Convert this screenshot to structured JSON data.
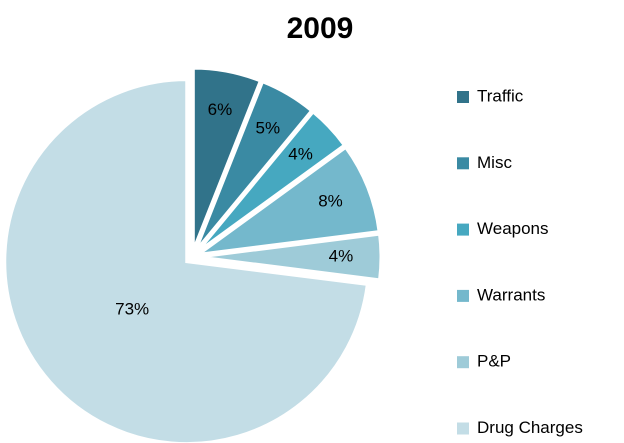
{
  "chart_data": {
    "type": "pie",
    "title": "2009",
    "categories": [
      "Traffic",
      "Misc",
      "Weapons",
      "Warrants",
      "P&P",
      "Drug Charges"
    ],
    "values": [
      6,
      5,
      4,
      8,
      4,
      73
    ],
    "value_labels": [
      "6%",
      "5%",
      "4%",
      "8%",
      "4%",
      "73%"
    ],
    "colors": [
      "#31738a",
      "#3a8aa3",
      "#46a8c0",
      "#74b8cc",
      "#9ecbd8",
      "#c3dde6"
    ],
    "legend": "right"
  }
}
